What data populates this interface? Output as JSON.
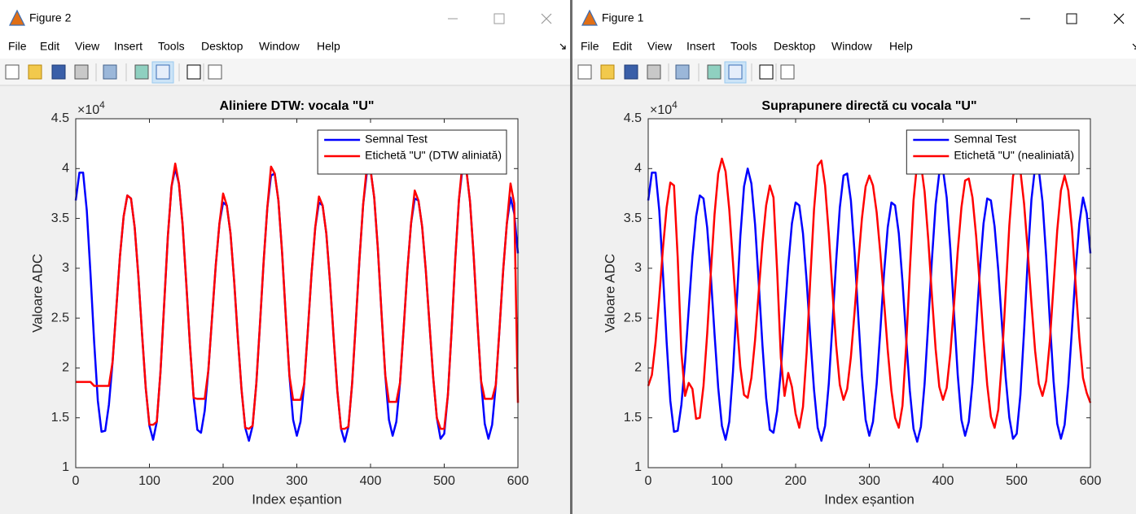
{
  "windows": [
    {
      "title": "Figure 2",
      "menu": [
        "File",
        "Edit",
        "View",
        "Insert",
        "Tools",
        "Desktop",
        "Window",
        "Help"
      ]
    },
    {
      "title": "Figure 1",
      "menu": [
        "File",
        "Edit",
        "View",
        "Insert",
        "Tools",
        "Desktop",
        "Window",
        "Help"
      ]
    }
  ],
  "chart_data": [
    {
      "type": "line",
      "title": "Aliniere DTW: vocala \"U\"",
      "xlabel": "Index eșantion",
      "ylabel": "Valoare ADC",
      "y_multiplier": {
        "base": "×10",
        "exponent": "4"
      },
      "xlim": [
        0,
        600
      ],
      "ylim": [
        1,
        4.5
      ],
      "xticks": [
        0,
        100,
        200,
        300,
        400,
        500,
        600
      ],
      "yticks": [
        1,
        1.5,
        2,
        2.5,
        3,
        3.5,
        4,
        4.5
      ],
      "grid": false,
      "legend": "northeast",
      "x": [
        0,
        5,
        10,
        15,
        20,
        25,
        30,
        35,
        40,
        45,
        50,
        55,
        60,
        65,
        70,
        75,
        80,
        85,
        90,
        95,
        100,
        105,
        110,
        115,
        120,
        125,
        130,
        135,
        140,
        145,
        150,
        155,
        160,
        165,
        170,
        175,
        180,
        185,
        190,
        195,
        200,
        205,
        210,
        215,
        220,
        225,
        230,
        235,
        240,
        245,
        250,
        255,
        260,
        265,
        270,
        275,
        280,
        285,
        290,
        295,
        300,
        305,
        310,
        315,
        320,
        325,
        330,
        335,
        340,
        345,
        350,
        355,
        360,
        365,
        370,
        375,
        380,
        385,
        390,
        395,
        400,
        405,
        410,
        415,
        420,
        425,
        430,
        435,
        440,
        445,
        450,
        455,
        460,
        465,
        470,
        475,
        480,
        485,
        490,
        495,
        500,
        505,
        510,
        515,
        520,
        525,
        530,
        535,
        540,
        545,
        550,
        555,
        560,
        565,
        570,
        575,
        580,
        585,
        590,
        595,
        600
      ],
      "series": [
        {
          "name": "Semnal Test",
          "color": "#0000ff",
          "values": [
            3.68,
            3.96,
            3.96,
            3.58,
            2.95,
            2.26,
            1.67,
            1.36,
            1.37,
            1.63,
            2.06,
            2.59,
            3.12,
            3.52,
            3.73,
            3.7,
            3.41,
            2.92,
            2.34,
            1.8,
            1.42,
            1.28,
            1.46,
            1.96,
            2.64,
            3.32,
            3.82,
            4.0,
            3.85,
            3.44,
            2.85,
            2.23,
            1.7,
            1.38,
            1.35,
            1.57,
            1.98,
            2.51,
            3.03,
            3.45,
            3.66,
            3.63,
            3.35,
            2.87,
            2.3,
            1.78,
            1.4,
            1.27,
            1.42,
            1.84,
            2.44,
            3.07,
            3.61,
            3.93,
            3.95,
            3.68,
            3.16,
            2.52,
            1.92,
            1.48,
            1.32,
            1.46,
            1.84,
            2.38,
            2.95,
            3.41,
            3.66,
            3.63,
            3.35,
            2.87,
            2.3,
            1.77,
            1.39,
            1.26,
            1.41,
            1.84,
            2.45,
            3.09,
            3.64,
            3.96,
            3.99,
            3.71,
            3.19,
            2.54,
            1.93,
            1.48,
            1.32,
            1.46,
            1.85,
            2.4,
            2.98,
            3.45,
            3.7,
            3.68,
            3.42,
            2.98,
            2.44,
            1.91,
            1.5,
            1.29,
            1.34,
            1.73,
            2.37,
            3.09,
            3.69,
            4.02,
            3.99,
            3.67,
            3.12,
            2.47,
            1.87,
            1.44,
            1.29,
            1.43,
            1.83,
            2.39,
            2.98,
            3.45,
            3.71,
            3.55,
            3.15
          ]
        },
        {
          "name": "Etichetă \"U\" (DTW aliniată)",
          "color": "#ff0000",
          "values": [
            1.86,
            1.86,
            1.86,
            1.86,
            1.86,
            1.82,
            1.82,
            1.82,
            1.82,
            1.82,
            2.06,
            2.59,
            3.12,
            3.52,
            3.73,
            3.7,
            3.41,
            2.92,
            2.34,
            1.8,
            1.43,
            1.43,
            1.46,
            1.96,
            2.64,
            3.32,
            3.82,
            4.05,
            3.85,
            3.44,
            2.85,
            2.23,
            1.7,
            1.69,
            1.69,
            1.69,
            1.98,
            2.51,
            3.03,
            3.45,
            3.75,
            3.63,
            3.35,
            2.87,
            2.3,
            1.78,
            1.4,
            1.39,
            1.42,
            1.84,
            2.44,
            3.07,
            3.61,
            4.02,
            3.95,
            3.68,
            3.16,
            2.52,
            1.92,
            1.68,
            1.68,
            1.68,
            1.84,
            2.38,
            2.95,
            3.41,
            3.72,
            3.63,
            3.35,
            2.87,
            2.3,
            1.77,
            1.39,
            1.39,
            1.41,
            1.84,
            2.45,
            3.09,
            3.64,
            4.02,
            3.99,
            3.71,
            3.19,
            2.54,
            1.93,
            1.66,
            1.66,
            1.66,
            1.85,
            2.4,
            2.98,
            3.45,
            3.78,
            3.68,
            3.42,
            2.98,
            2.44,
            1.91,
            1.5,
            1.39,
            1.39,
            1.73,
            2.37,
            3.09,
            3.69,
            4.08,
            3.99,
            3.67,
            3.12,
            2.47,
            1.87,
            1.69,
            1.69,
            1.69,
            1.83,
            2.39,
            2.98,
            3.45,
            3.85,
            3.65,
            1.65
          ]
        }
      ]
    },
    {
      "type": "line",
      "title": "Suprapunere directă cu vocala \"U\"",
      "xlabel": "Index eșantion",
      "ylabel": "Valoare ADC",
      "y_multiplier": {
        "base": "×10",
        "exponent": "4"
      },
      "xlim": [
        0,
        600
      ],
      "ylim": [
        1,
        4.5
      ],
      "xticks": [
        0,
        100,
        200,
        300,
        400,
        500,
        600
      ],
      "yticks": [
        1,
        1.5,
        2,
        2.5,
        3,
        3.5,
        4,
        4.5
      ],
      "grid": false,
      "legend": "northeast",
      "x": [
        0,
        5,
        10,
        15,
        20,
        25,
        30,
        35,
        40,
        45,
        50,
        55,
        60,
        65,
        70,
        75,
        80,
        85,
        90,
        95,
        100,
        105,
        110,
        115,
        120,
        125,
        130,
        135,
        140,
        145,
        150,
        155,
        160,
        165,
        170,
        175,
        180,
        185,
        190,
        195,
        200,
        205,
        210,
        215,
        220,
        225,
        230,
        235,
        240,
        245,
        250,
        255,
        260,
        265,
        270,
        275,
        280,
        285,
        290,
        295,
        300,
        305,
        310,
        315,
        320,
        325,
        330,
        335,
        340,
        345,
        350,
        355,
        360,
        365,
        370,
        375,
        380,
        385,
        390,
        395,
        400,
        405,
        410,
        415,
        420,
        425,
        430,
        435,
        440,
        445,
        450,
        455,
        460,
        465,
        470,
        475,
        480,
        485,
        490,
        495,
        500,
        505,
        510,
        515,
        520,
        525,
        530,
        535,
        540,
        545,
        550,
        555,
        560,
        565,
        570,
        575,
        580,
        585,
        590,
        595,
        600
      ],
      "series": [
        {
          "name": "Semnal Test",
          "color": "#0000ff",
          "values": [
            3.68,
            3.96,
            3.96,
            3.58,
            2.95,
            2.26,
            1.67,
            1.36,
            1.37,
            1.63,
            2.06,
            2.59,
            3.12,
            3.52,
            3.73,
            3.7,
            3.41,
            2.92,
            2.34,
            1.8,
            1.42,
            1.28,
            1.46,
            1.96,
            2.64,
            3.32,
            3.82,
            4.0,
            3.85,
            3.44,
            2.85,
            2.23,
            1.7,
            1.38,
            1.35,
            1.57,
            1.98,
            2.51,
            3.03,
            3.45,
            3.66,
            3.63,
            3.35,
            2.87,
            2.3,
            1.78,
            1.4,
            1.27,
            1.42,
            1.84,
            2.44,
            3.07,
            3.61,
            3.93,
            3.95,
            3.68,
            3.16,
            2.52,
            1.92,
            1.48,
            1.32,
            1.46,
            1.84,
            2.38,
            2.95,
            3.41,
            3.66,
            3.63,
            3.35,
            2.87,
            2.3,
            1.77,
            1.39,
            1.26,
            1.41,
            1.84,
            2.45,
            3.09,
            3.64,
            3.96,
            3.99,
            3.71,
            3.19,
            2.54,
            1.93,
            1.48,
            1.32,
            1.46,
            1.85,
            2.4,
            2.98,
            3.45,
            3.7,
            3.68,
            3.42,
            2.98,
            2.44,
            1.91,
            1.5,
            1.29,
            1.34,
            1.73,
            2.37,
            3.09,
            3.69,
            4.02,
            3.99,
            3.67,
            3.12,
            2.47,
            1.87,
            1.44,
            1.29,
            1.43,
            1.83,
            2.39,
            2.98,
            3.45,
            3.71,
            3.55,
            3.15
          ]
        },
        {
          "name": "Etichetă \"U\" (nealiniată)",
          "color": "#ff0000",
          "values": [
            1.82,
            1.93,
            2.26,
            2.71,
            3.2,
            3.61,
            3.86,
            3.83,
            3.11,
            2.16,
            1.72,
            1.85,
            1.79,
            1.49,
            1.5,
            1.82,
            2.34,
            2.96,
            3.54,
            3.95,
            4.1,
            3.97,
            3.59,
            3.06,
            2.5,
            2.01,
            1.73,
            1.7,
            1.9,
            2.28,
            2.77,
            3.25,
            3.63,
            3.83,
            3.71,
            2.97,
            2.1,
            1.72,
            1.95,
            1.81,
            1.54,
            1.4,
            1.61,
            2.16,
            2.9,
            3.59,
            4.03,
            4.08,
            3.83,
            3.35,
            2.77,
            2.23,
            1.83,
            1.68,
            1.79,
            2.11,
            2.56,
            3.05,
            3.5,
            3.82,
            3.93,
            3.83,
            3.56,
            3.15,
            2.67,
            2.18,
            1.77,
            1.5,
            1.4,
            1.62,
            2.22,
            2.98,
            3.68,
            4.06,
            4.05,
            3.77,
            3.29,
            2.72,
            2.19,
            1.81,
            1.68,
            1.8,
            2.15,
            2.64,
            3.17,
            3.61,
            3.88,
            3.9,
            3.71,
            3.32,
            2.82,
            2.29,
            1.83,
            1.51,
            1.4,
            1.58,
            2.08,
            2.75,
            3.43,
            3.92,
            4.1,
            3.98,
            3.65,
            3.17,
            2.65,
            2.17,
            1.84,
            1.72,
            1.87,
            2.27,
            2.83,
            3.38,
            3.78,
            3.93,
            3.78,
            3.39,
            2.84,
            2.3,
            1.9,
            1.75,
            1.65
          ]
        }
      ]
    }
  ]
}
